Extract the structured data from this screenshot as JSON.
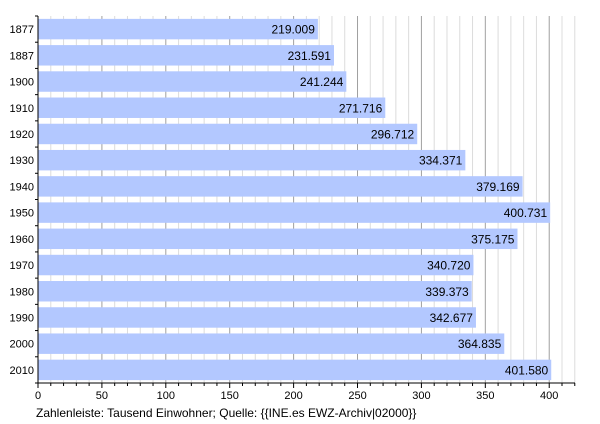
{
  "chart_data": {
    "type": "bar",
    "orientation": "horizontal",
    "categories": [
      "1877",
      "1887",
      "1900",
      "1910",
      "1920",
      "1930",
      "1940",
      "1950",
      "1960",
      "1970",
      "1980",
      "1990",
      "2000",
      "2010"
    ],
    "values": [
      219.009,
      231.591,
      241.244,
      271.716,
      296.712,
      334.371,
      379.169,
      400.731,
      375.175,
      340.72,
      339.373,
      342.677,
      364.835,
      401.58
    ],
    "value_labels": [
      "219.009",
      "231.591",
      "241.244",
      "271.716",
      "296.712",
      "334.371",
      "379.169",
      "400.731",
      "375.175",
      "340.720",
      "339.373",
      "342.677",
      "364.835",
      "401.580"
    ],
    "xlim": [
      0,
      420
    ],
    "xticks": [
      0,
      50,
      100,
      150,
      200,
      250,
      300,
      350,
      400
    ],
    "grid": true,
    "bar_color": "#b3c8ff",
    "caption": "Zahlenleiste: Tausend Einwohner; Quelle: {{INE.es EWZ-Archiv|02000}}"
  }
}
